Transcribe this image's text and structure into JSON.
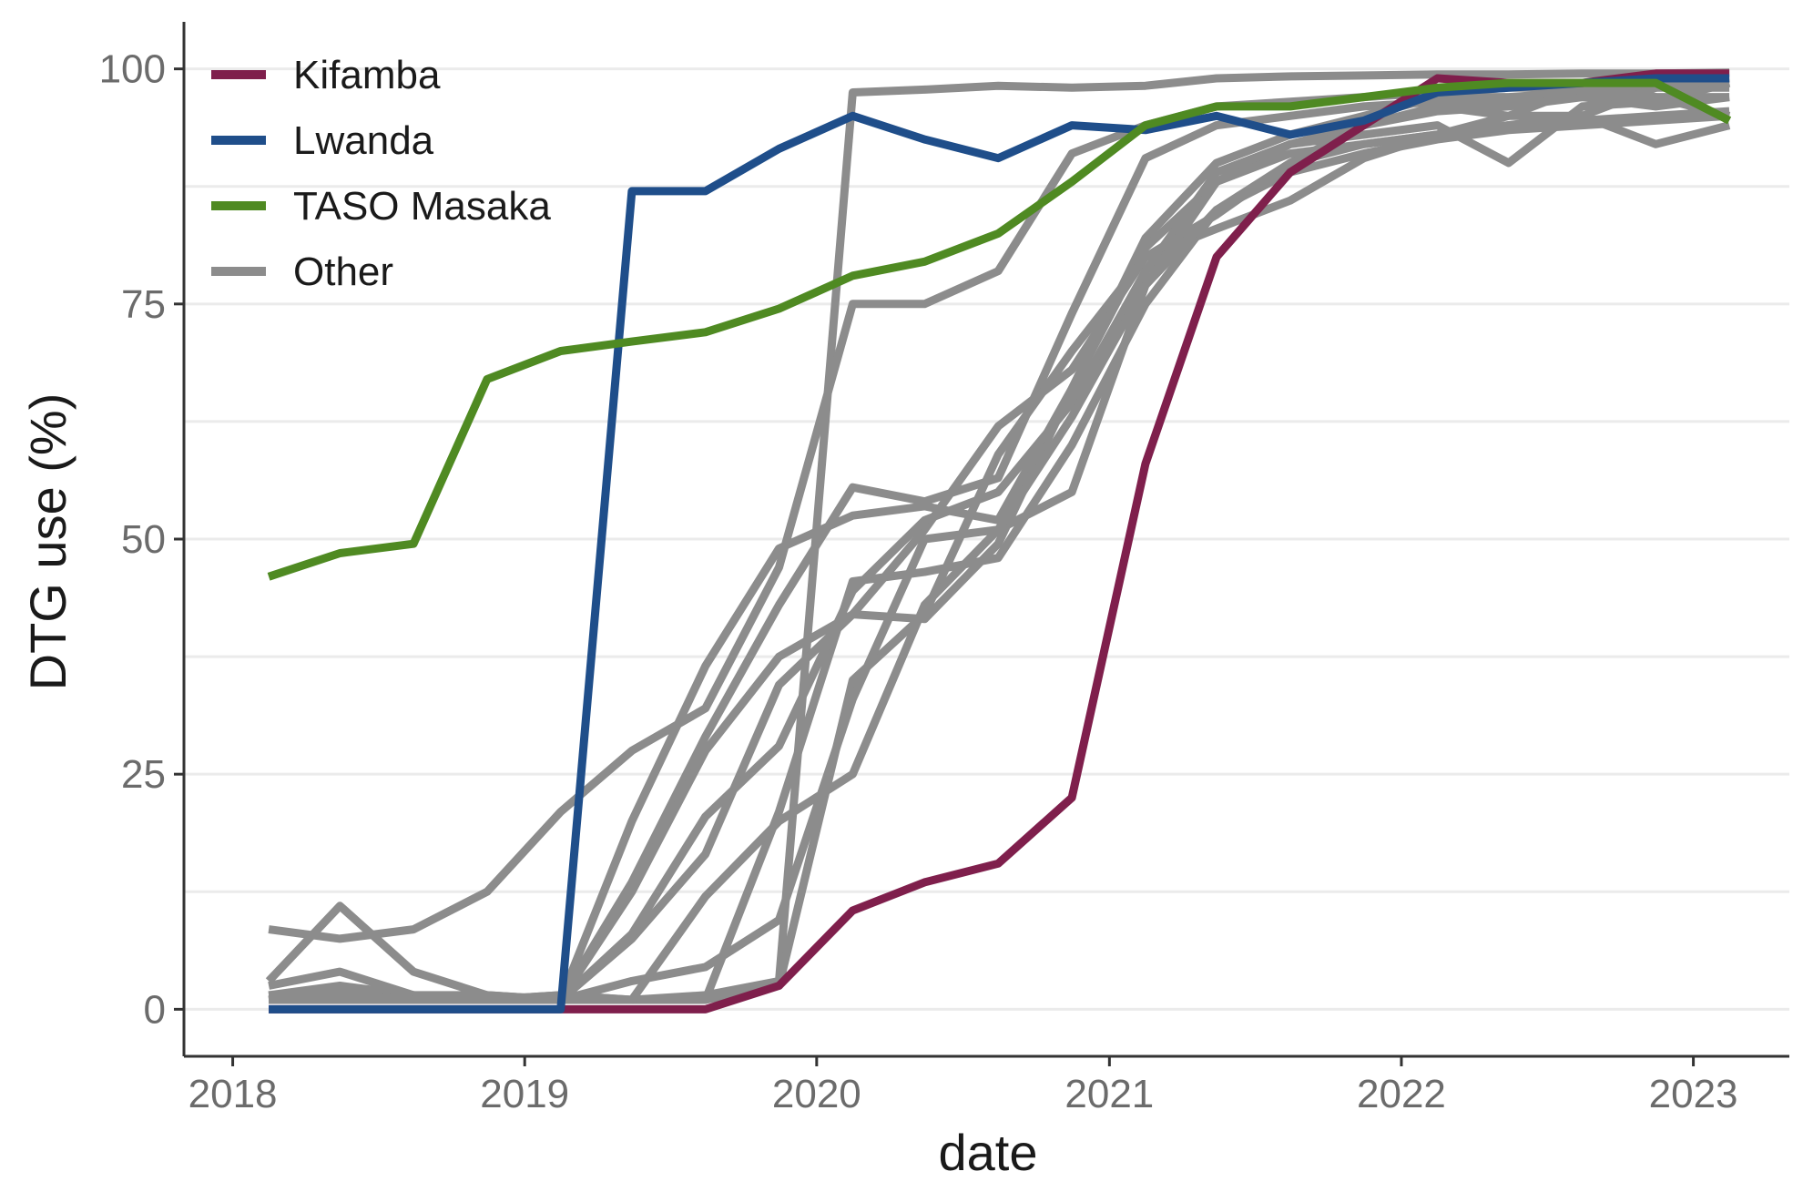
{
  "chart_data": {
    "type": "line",
    "xlabel": "date",
    "ylabel": "DTG use (%)",
    "x_ticks": [
      "2018",
      "2019",
      "2020",
      "2021",
      "2022",
      "2023"
    ],
    "y_ticks": [
      0,
      25,
      50,
      75,
      100
    ],
    "xlim": [
      "2017-11-01",
      "2023-05-01"
    ],
    "ylim": [
      -5,
      105
    ],
    "grid": true,
    "legend_position": "top-left",
    "legend": [
      {
        "label": "Kifamba",
        "color": "#7f1f4c"
      },
      {
        "label": "Lwanda",
        "color": "#1f4e8a"
      },
      {
        "label": "TASO Masaka",
        "color": "#4f8a22"
      },
      {
        "label": "Other",
        "color": "#8c8c8c"
      }
    ],
    "quarter_dates": [
      "2018-02-15",
      "2018-05-15",
      "2018-08-15",
      "2018-11-15",
      "2019-02-15",
      "2019-05-15",
      "2019-08-15",
      "2019-11-15",
      "2020-02-15",
      "2020-05-15",
      "2020-08-15",
      "2020-11-15",
      "2021-02-15",
      "2021-05-15",
      "2021-08-15",
      "2021-11-15",
      "2022-02-15",
      "2022-05-15",
      "2022-08-15",
      "2022-11-15",
      "2023-02-15"
    ],
    "series": [
      {
        "group": "Other",
        "color": "#8c8c8c",
        "values": [
          1.5,
          2.5,
          1.5,
          1,
          1.5,
          1,
          1.5,
          3,
          97.5,
          97.8,
          98.2,
          98,
          98.2,
          99,
          99.2,
          99.3,
          99.4,
          99.4,
          99.5,
          99.5,
          99.6
        ]
      },
      {
        "group": "Other",
        "color": "#8c8c8c",
        "values": [
          3,
          11,
          4,
          1.5,
          1,
          20,
          36.5,
          49,
          52.5,
          53.5,
          52,
          66,
          82,
          90,
          93,
          95,
          97,
          97,
          97.5,
          98.5,
          98.5
        ]
      },
      {
        "group": "Other",
        "color": "#8c8c8c",
        "values": [
          8.5,
          7.5,
          8.5,
          12.5,
          21,
          27.5,
          32,
          47,
          75,
          75,
          78.5,
          91,
          94,
          96,
          96.5,
          97,
          97.5,
          98,
          98,
          98,
          98
        ]
      },
      {
        "group": "Other",
        "color": "#8c8c8c",
        "values": [
          2.5,
          4,
          1.5,
          1.5,
          1,
          13.5,
          29,
          43,
          55.5,
          54,
          56.5,
          74,
          90.5,
          94,
          95,
          96,
          96.5,
          96.5,
          97,
          97,
          97
        ]
      },
      {
        "group": "Other",
        "color": "#8c8c8c",
        "values": [
          1,
          2,
          1.5,
          1,
          1,
          12.5,
          27.5,
          37.5,
          42,
          41.5,
          49.5,
          66,
          81,
          88,
          92,
          94,
          95.5,
          96,
          97,
          96,
          97
        ]
      },
      {
        "group": "Other",
        "color": "#8c8c8c",
        "values": [
          1.5,
          1.5,
          1,
          1,
          1.5,
          1,
          1,
          21,
          45.5,
          46.5,
          48,
          60,
          75,
          85,
          90,
          94,
          96,
          95,
          98,
          97,
          95
        ]
      },
      {
        "group": "Other",
        "color": "#8c8c8c",
        "values": [
          1,
          1,
          1,
          1,
          1,
          7.5,
          16.5,
          34.5,
          42,
          51,
          62,
          68,
          80,
          83,
          86,
          90.5,
          93,
          94,
          95,
          98,
          99
        ]
      },
      {
        "group": "Other",
        "color": "#8c8c8c",
        "values": [
          1,
          1,
          1,
          1,
          1,
          8,
          20.5,
          28,
          44.5,
          52,
          55,
          64.5,
          78.5,
          89,
          92,
          93,
          94,
          90,
          96,
          96.5,
          98.5
        ]
      },
      {
        "group": "Other",
        "color": "#8c8c8c",
        "values": [
          1,
          1.5,
          1,
          1,
          1,
          1,
          1,
          2.5,
          35,
          42,
          59,
          70,
          80,
          84.5,
          90,
          92,
          93,
          95,
          95,
          92,
          94
        ]
      },
      {
        "group": "Other",
        "color": "#8c8c8c",
        "values": [
          1,
          1,
          1,
          1,
          1,
          3,
          4.5,
          9.5,
          33,
          50,
          51,
          55,
          77,
          85,
          89,
          91,
          92.5,
          93.5,
          94,
          94.5,
          95
        ]
      },
      {
        "group": "Other",
        "color": "#8c8c8c",
        "values": [
          1,
          1,
          1,
          1,
          1,
          1,
          12,
          20,
          25,
          43,
          51,
          63,
          77,
          88,
          91,
          92,
          93,
          94,
          94.5,
          95,
          95.5
        ]
      },
      {
        "group": "Kifamba",
        "color": "#7f1f4c",
        "values": [
          0,
          0,
          0,
          0,
          0,
          0,
          0,
          2.5,
          10.5,
          13.5,
          15.5,
          22.5,
          58,
          80,
          89,
          94,
          99,
          98.5,
          98.5,
          99.5,
          99.5
        ]
      },
      {
        "group": "Lwanda",
        "color": "#1f4e8a",
        "values": [
          0,
          0,
          0,
          0,
          0,
          87,
          87,
          91.5,
          95,
          92.5,
          90.5,
          94,
          93.5,
          95,
          93,
          94.5,
          97.5,
          98,
          98.5,
          99,
          99
        ]
      },
      {
        "group": "TASO Masaka",
        "color": "#4f8a22",
        "values": [
          46,
          48.5,
          49.5,
          67,
          70,
          71,
          72,
          74.5,
          78,
          79.5,
          82.5,
          88,
          94,
          96,
          96,
          97,
          98,
          98.5,
          98.5,
          98.5,
          94.5
        ]
      }
    ]
  }
}
